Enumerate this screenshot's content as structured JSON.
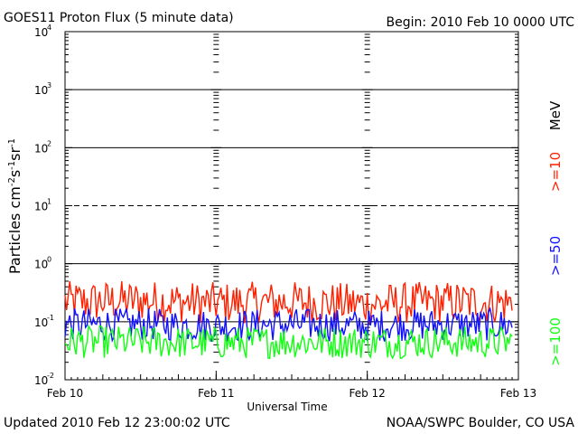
{
  "header": {
    "title": "GOES11 Proton Flux (5 minute data)",
    "begin": "Begin: 2010 Feb 10 0000 UTC"
  },
  "footer": {
    "updated": "Updated 2010 Feb 12 23:00:02 UTC",
    "credit": "NOAA/SWPC Boulder, CO USA"
  },
  "colors": {
    "ge10": "#ff2000",
    "ge50": "#1010ff",
    "ge100": "#10ff10",
    "grid": "#000000"
  },
  "chart_data": {
    "type": "line",
    "title": "GOES11 Proton Flux (5 minute data)",
    "xlabel": "Universal Time",
    "ylabel": "Particles cm-2s-1sr-1",
    "y_scale": "log",
    "ylim": [
      0.01,
      10000
    ],
    "xlim": [
      "2010-02-10",
      "2010-02-13"
    ],
    "x_tick_labels": [
      "Feb 10",
      "Feb 11",
      "Feb 12",
      "Feb 13"
    ],
    "y_tick_labels": [
      {
        "base": "10",
        "exp": "4"
      },
      {
        "base": "10",
        "exp": "3"
      },
      {
        "base": "10",
        "exp": "2"
      },
      {
        "base": "10",
        "exp": "1"
      },
      {
        "base": "10",
        "exp": "0"
      },
      {
        "base": "10",
        "exp": "-1"
      },
      {
        "base": "10",
        "exp": "-2"
      }
    ],
    "reference_lines": [
      {
        "value": 1000,
        "style": "solid"
      },
      {
        "value": 100,
        "style": "solid"
      },
      {
        "value": 10,
        "style": "dashed"
      },
      {
        "value": 1,
        "style": "solid"
      },
      {
        "value": 0.1,
        "style": "solid"
      }
    ],
    "unit_label": "MeV",
    "series": [
      {
        "name": ">=10",
        "color": "#ff2000",
        "x": [
          "2010-02-10 00:00",
          "2010-02-10 12:00",
          "2010-02-11 00:00",
          "2010-02-11 12:00",
          "2010-02-12 00:00",
          "2010-02-12 12:00",
          "2010-02-12 23:00"
        ],
        "values": [
          0.22,
          0.23,
          0.21,
          0.22,
          0.2,
          0.22,
          0.21
        ]
      },
      {
        "name": ">=50",
        "color": "#1010ff",
        "x": [
          "2010-02-10 00:00",
          "2010-02-10 12:00",
          "2010-02-11 00:00",
          "2010-02-11 12:00",
          "2010-02-12 00:00",
          "2010-02-12 12:00",
          "2010-02-12 23:00"
        ],
        "values": [
          0.09,
          0.09,
          0.085,
          0.09,
          0.085,
          0.09,
          0.088
        ]
      },
      {
        "name": ">=100",
        "color": "#10ff10",
        "x": [
          "2010-02-10 00:00",
          "2010-02-10 12:00",
          "2010-02-11 00:00",
          "2010-02-11 12:00",
          "2010-02-12 00:00",
          "2010-02-12 12:00",
          "2010-02-12 23:00"
        ],
        "values": [
          0.045,
          0.045,
          0.043,
          0.045,
          0.044,
          0.045,
          0.044
        ]
      }
    ]
  }
}
